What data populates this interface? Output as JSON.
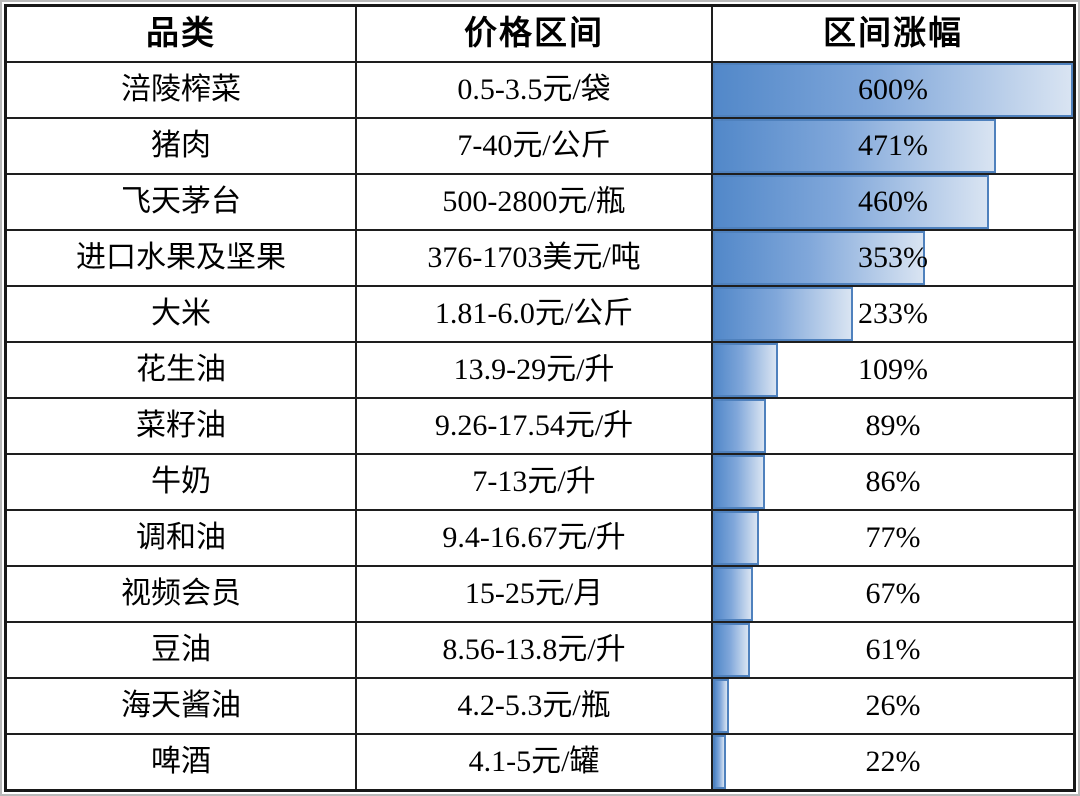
{
  "table": {
    "headers": [
      "品类",
      "价格区间",
      "区间涨幅"
    ],
    "rows": [
      {
        "category": "涪陵榨菜",
        "price_range": "0.5-3.5元/袋",
        "increase_label": "600%",
        "increase_value": 600
      },
      {
        "category": "猪肉",
        "price_range": "7-40元/公斤",
        "increase_label": "471%",
        "increase_value": 471
      },
      {
        "category": "飞天茅台",
        "price_range": "500-2800元/瓶",
        "increase_label": "460%",
        "increase_value": 460
      },
      {
        "category": "进口水果及坚果",
        "price_range": "376-1703美元/吨",
        "increase_label": "353%",
        "increase_value": 353
      },
      {
        "category": "大米",
        "price_range": "1.81-6.0元/公斤",
        "increase_label": "233%",
        "increase_value": 233
      },
      {
        "category": "花生油",
        "price_range": "13.9-29元/升",
        "increase_label": "109%",
        "increase_value": 109
      },
      {
        "category": "菜籽油",
        "price_range": "9.26-17.54元/升",
        "increase_label": "89%",
        "increase_value": 89
      },
      {
        "category": "牛奶",
        "price_range": "7-13元/升",
        "increase_label": "86%",
        "increase_value": 86
      },
      {
        "category": "调和油",
        "price_range": "9.4-16.67元/升",
        "increase_label": "77%",
        "increase_value": 77
      },
      {
        "category": "视频会员",
        "price_range": "15-25元/月",
        "increase_label": "67%",
        "increase_value": 67
      },
      {
        "category": "豆油",
        "price_range": "8.56-13.8元/升",
        "increase_label": "61%",
        "increase_value": 61
      },
      {
        "category": "海天酱油",
        "price_range": "4.2-5.3元/瓶",
        "increase_label": "26%",
        "increase_value": 26
      },
      {
        "category": "啤酒",
        "price_range": "4.1-5元/罐",
        "increase_label": "22%",
        "increase_value": 22
      }
    ]
  },
  "chart_data": {
    "type": "bar",
    "title": "",
    "categories": [
      "涪陵榨菜",
      "猪肉",
      "飞天茅台",
      "进口水果及坚果",
      "大米",
      "花生油",
      "菜籽油",
      "牛奶",
      "调和油",
      "视频会员",
      "豆油",
      "海天酱油",
      "啤酒"
    ],
    "values": [
      600,
      471,
      460,
      353,
      233,
      109,
      89,
      86,
      77,
      67,
      61,
      26,
      22
    ],
    "value_labels": [
      "600%",
      "471%",
      "460%",
      "353%",
      "233%",
      "109%",
      "89%",
      "86%",
      "77%",
      "67%",
      "61%",
      "26%",
      "22%"
    ],
    "price_ranges": [
      "0.5-3.5元/袋",
      "7-40元/公斤",
      "500-2800元/瓶",
      "376-1703美元/吨",
      "1.81-6.0元/公斤",
      "13.9-29元/升",
      "9.26-17.54元/升",
      "7-13元/升",
      "9.4-16.67元/升",
      "15-25元/月",
      "8.56-13.8元/升",
      "4.2-5.3元/瓶",
      "4.1-5元/罐"
    ],
    "xlabel": "品类",
    "ylabel": "区间涨幅",
    "max_value": 600,
    "orientation": "horizontal",
    "grid": true,
    "legend": "none"
  },
  "colors": {
    "bar_border": "#4f81bd",
    "bar_gradient_left": "#5288c9",
    "bar_gradient_mid": "#80a7da",
    "bar_gradient_right": "#d9e4f2",
    "grid_line": "#1e1e1e",
    "text": "#000000",
    "background": "#ffffff"
  }
}
